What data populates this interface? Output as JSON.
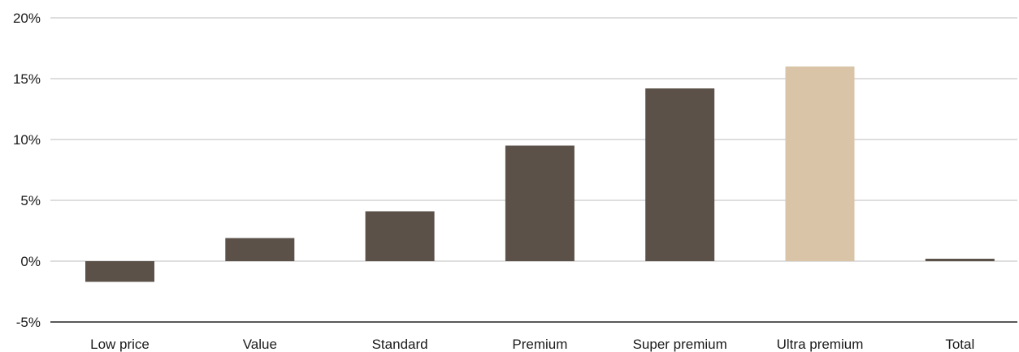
{
  "chart_data": {
    "type": "bar",
    "categories": [
      "Low price",
      "Value",
      "Standard",
      "Premium",
      "Super premium",
      "Ultra premium",
      "Total"
    ],
    "values": [
      -1.7,
      1.9,
      4.1,
      9.5,
      14.2,
      16.0,
      0.2
    ],
    "ylim": [
      -5,
      20
    ],
    "yticks": [
      20,
      15,
      10,
      5,
      0,
      -5
    ],
    "ytick_labels": [
      "20%",
      "15%",
      "10%",
      "5%",
      "0%",
      "-5%"
    ],
    "title": "",
    "xlabel": "",
    "ylabel": "",
    "grid": true,
    "colors": {
      "default_bar": "#5b5149",
      "highlight_bar": "#d9c4a8",
      "grid": "#bdbdbd",
      "axis": "#222222"
    },
    "highlight_index": 5
  }
}
